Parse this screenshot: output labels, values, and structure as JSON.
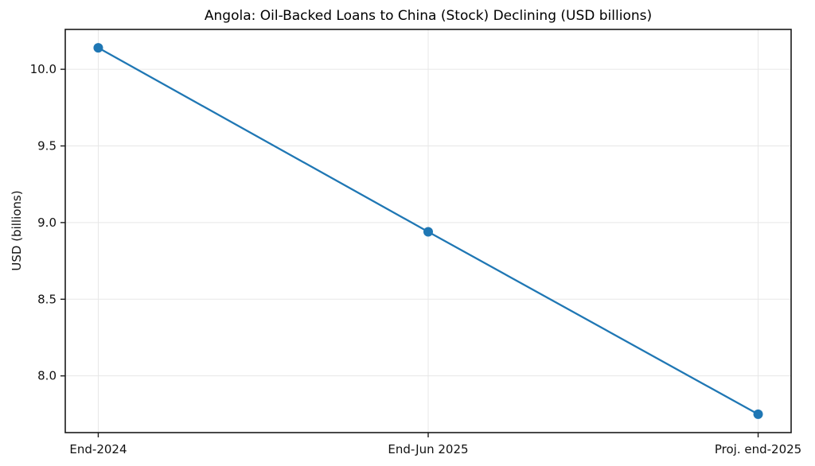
{
  "chart_data": {
    "type": "line",
    "title": "Angola: Oil-Backed Loans to China (Stock) Declining (USD billions)",
    "ylabel": "USD (billions)",
    "xlabel": "",
    "categories": [
      "End-2024",
      "End-Jun 2025",
      "Proj. end-2025"
    ],
    "values": [
      10.14,
      8.94,
      7.75
    ],
    "ytick_labels": [
      "8.0",
      "8.5",
      "9.0",
      "9.5",
      "10.0"
    ],
    "ylim": [
      7.63,
      10.26
    ],
    "grid": true,
    "legend_position": "none",
    "marker": "circle",
    "line_color": "#1f77b4",
    "grid_color": "#e7e7e7",
    "spine_color": "#1a1a1a",
    "text_color": "#111111",
    "background": "#ffffff"
  }
}
